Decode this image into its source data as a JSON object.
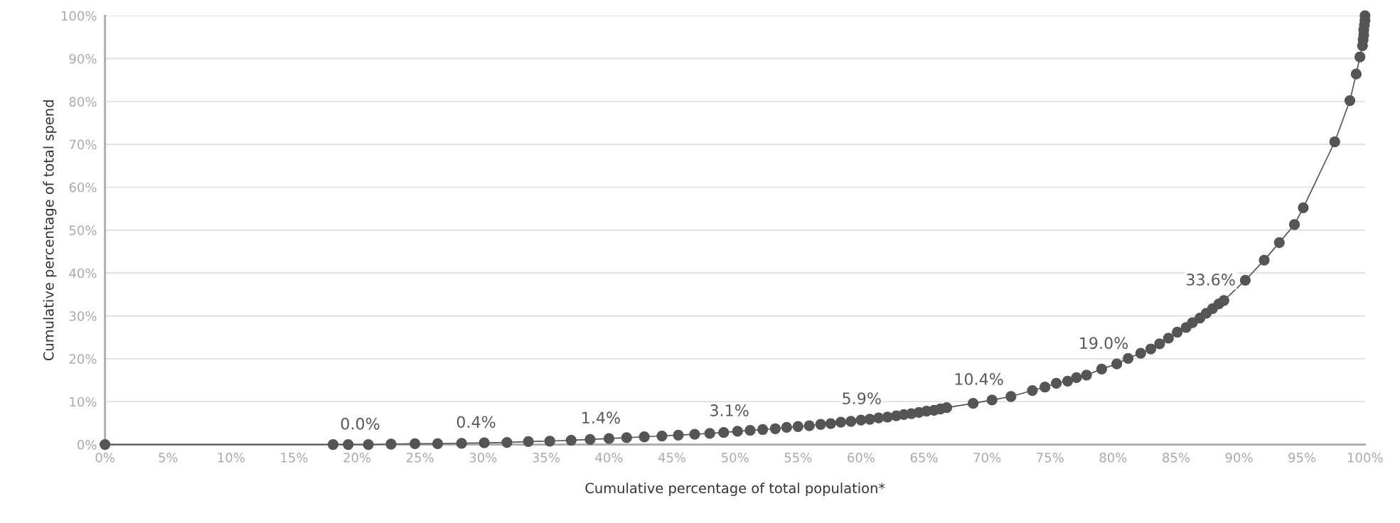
{
  "chart_data": {
    "type": "line",
    "xlabel": "Cumulative percentage of total population*",
    "ylabel": "Cumulative percentage of total spend",
    "series": [
      {
        "color": "#555555",
        "x": [
          0,
          18.1,
          19.3,
          20.9,
          22.7,
          24.6,
          26.4,
          28.3,
          30.1,
          31.9,
          33.6,
          35.3,
          37.0,
          38.5,
          40.0,
          41.4,
          42.8,
          44.2,
          45.5,
          46.8,
          48.0,
          49.1,
          50.2,
          51.2,
          52.2,
          53.2,
          54.1,
          55.0,
          55.9,
          56.8,
          57.6,
          58.4,
          59.2,
          60.0,
          60.7,
          61.4,
          62.1,
          62.8,
          63.4,
          64.0,
          64.6,
          65.2,
          65.8,
          66.3,
          66.8,
          68.9,
          70.4,
          71.9,
          73.6,
          74.6,
          75.5,
          76.4,
          77.1,
          77.9,
          79.1,
          80.3,
          81.2,
          82.2,
          83.0,
          83.7,
          84.4,
          85.1,
          85.8,
          86.3,
          86.9,
          87.4,
          87.9,
          88.4,
          88.8,
          90.5,
          92.0,
          93.2,
          94.4,
          95.1,
          97.6,
          98.8,
          99.3,
          99.6,
          99.8,
          99.85,
          99.9,
          99.9,
          99.95,
          100,
          100
        ],
        "values": [
          0,
          0,
          0,
          0,
          0.1,
          0.2,
          0.2,
          0.3,
          0.4,
          0.5,
          0.7,
          0.8,
          1.0,
          1.2,
          1.4,
          1.6,
          1.8,
          2.0,
          2.2,
          2.4,
          2.6,
          2.8,
          3.1,
          3.3,
          3.5,
          3.7,
          4.0,
          4.2,
          4.4,
          4.7,
          4.9,
          5.2,
          5.4,
          5.7,
          5.9,
          6.2,
          6.4,
          6.7,
          7.0,
          7.2,
          7.5,
          7.8,
          8.0,
          8.3,
          8.6,
          9.6,
          10.4,
          11.2,
          12.6,
          13.4,
          14.3,
          14.8,
          15.6,
          16.2,
          17.6,
          18.8,
          20.1,
          21.3,
          22.3,
          23.5,
          24.8,
          26.2,
          27.3,
          28.4,
          29.5,
          30.6,
          31.7,
          32.8,
          33.6,
          38.3,
          43.0,
          47.1,
          51.3,
          55.2,
          70.6,
          80.2,
          86.4,
          90.4,
          93.0,
          94.4,
          95.5,
          96.7,
          97.8,
          98.9,
          100
        ]
      }
    ],
    "annotations": [
      {
        "text": "0.0%",
        "x": 20.9,
        "y": 0
      },
      {
        "text": "0.4%",
        "x": 30.1,
        "y": 0.4
      },
      {
        "text": "1.4%",
        "x": 40.0,
        "y": 1.4
      },
      {
        "text": "3.1%",
        "x": 50.2,
        "y": 3.1
      },
      {
        "text": "5.9%",
        "x": 60.7,
        "y": 5.9
      },
      {
        "text": "10.4%",
        "x": 70.4,
        "y": 10.4
      },
      {
        "text": "19.0%",
        "x": 80.3,
        "y": 18.8
      },
      {
        "text": "33.6%",
        "x": 88.8,
        "y": 33.6
      }
    ],
    "xlim": [
      0,
      100
    ],
    "ylim": [
      0,
      100
    ],
    "xticks": [
      {
        "value": 0,
        "label": "0%"
      },
      {
        "value": 5,
        "label": "5%"
      },
      {
        "value": 10,
        "label": "10%"
      },
      {
        "value": 15,
        "label": "15%"
      },
      {
        "value": 20,
        "label": "20%"
      },
      {
        "value": 25,
        "label": "25%"
      },
      {
        "value": 30,
        "label": "30%"
      },
      {
        "value": 35,
        "label": "35%"
      },
      {
        "value": 40,
        "label": "40%"
      },
      {
        "value": 45,
        "label": "45%"
      },
      {
        "value": 50,
        "label": "50%"
      },
      {
        "value": 55,
        "label": "55%"
      },
      {
        "value": 60,
        "label": "60%"
      },
      {
        "value": 65,
        "label": "65%"
      },
      {
        "value": 70,
        "label": "70%"
      },
      {
        "value": 75,
        "label": "75%"
      },
      {
        "value": 80,
        "label": "80%"
      },
      {
        "value": 85,
        "label": "85%"
      },
      {
        "value": 90,
        "label": "90%"
      },
      {
        "value": 95,
        "label": "95%"
      },
      {
        "value": 100,
        "label": "100%"
      }
    ],
    "yticks": [
      {
        "value": 0,
        "label": "0%"
      },
      {
        "value": 10,
        "label": "10%"
      },
      {
        "value": 20,
        "label": "20%"
      },
      {
        "value": 30,
        "label": "30%"
      },
      {
        "value": 40,
        "label": "40%"
      },
      {
        "value": 50,
        "label": "50%"
      },
      {
        "value": 60,
        "label": "60%"
      },
      {
        "value": 70,
        "label": "70%"
      },
      {
        "value": 80,
        "label": "80%"
      },
      {
        "value": 90,
        "label": "90%"
      },
      {
        "value": 100,
        "label": "100%"
      }
    ],
    "grid": "y",
    "marker": "circle",
    "line_style": "solid"
  }
}
